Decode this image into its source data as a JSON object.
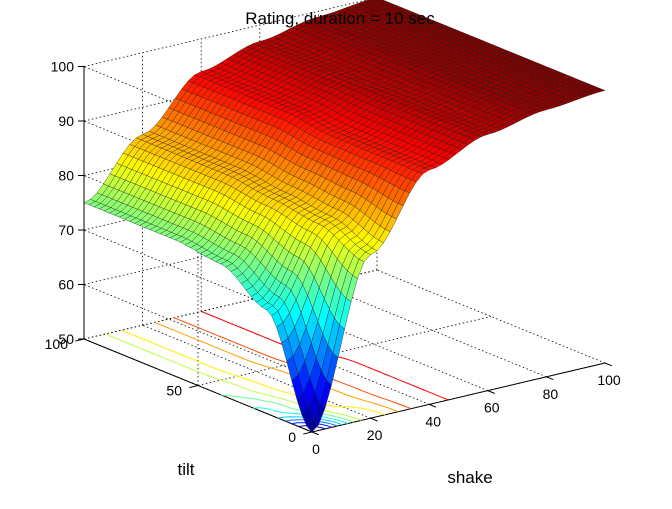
{
  "chart_data": {
    "type": "surface",
    "title": "Rating, duration = 10 sec",
    "xlabel": "shake",
    "ylabel": "tilt",
    "zlabel": "",
    "xlim": [
      0,
      100
    ],
    "ylim": [
      0,
      100
    ],
    "zlim": [
      50,
      100
    ],
    "x_ticks": [
      "0",
      "20",
      "40",
      "60",
      "80",
      "100"
    ],
    "y_ticks": [
      "0",
      "50",
      "100"
    ],
    "z_ticks": [
      "50",
      "60",
      "70",
      "80",
      "90",
      "100"
    ],
    "grid": true,
    "colormap": "jet",
    "contour_levels": [
      54,
      58,
      62,
      66,
      70,
      74,
      78,
      82,
      86,
      90,
      94
    ],
    "surface": {
      "x": [
        0,
        20,
        40,
        60,
        80,
        100
      ],
      "y": [
        0,
        20,
        40,
        60,
        80,
        100
      ],
      "z_rows_by_tilt": [
        [
          50,
          80,
          93,
          97,
          99,
          100
        ],
        [
          69,
          83,
          93,
          97,
          99,
          100
        ],
        [
          74,
          84,
          93,
          97,
          99,
          100
        ],
        [
          75,
          85,
          94,
          97,
          99,
          100
        ],
        [
          75,
          85,
          94,
          97,
          99,
          100
        ],
        [
          75,
          85,
          94,
          97,
          99,
          100
        ]
      ]
    }
  }
}
